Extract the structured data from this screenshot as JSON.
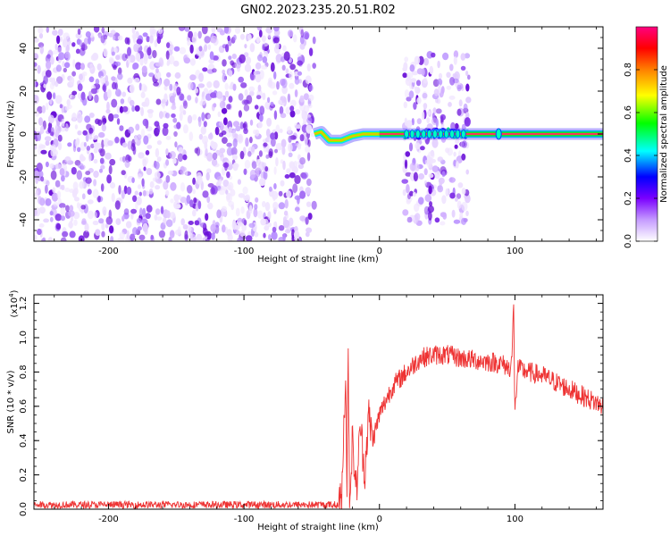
{
  "title": "GN02.2023.235.20.51.R02",
  "chart_data": [
    {
      "type": "heatmap",
      "xlabel": "Height of straight line (km)",
      "ylabel": "Frequency (Hz)",
      "xlim": [
        -255,
        165
      ],
      "ylim": [
        -50,
        50
      ],
      "xticks": [
        -200,
        -100,
        0,
        100
      ],
      "xtick_labels": [
        "-200",
        "-100",
        "0",
        "100"
      ],
      "yticks": [
        -40,
        -20,
        0,
        20,
        40
      ],
      "ytick_labels": [
        "-40",
        "-20",
        "0",
        "20",
        "40"
      ],
      "noise_regions": [
        {
          "x": [
            -255,
            -48
          ],
          "y": [
            -50,
            50
          ],
          "level": "medium"
        },
        {
          "x": [
            18,
            66
          ],
          "y": [
            -42,
            38
          ],
          "level": "medium"
        }
      ],
      "signal_track": [
        {
          "x": -48,
          "f": 0
        },
        {
          "x": -43,
          "f": 1
        },
        {
          "x": -37,
          "f": -3
        },
        {
          "x": -28,
          "f": -3
        },
        {
          "x": -20,
          "f": -1
        },
        {
          "x": -12,
          "f": 0
        },
        {
          "x": -5,
          "f": 0
        },
        {
          "x": 165,
          "f": 0
        }
      ],
      "strong_line": {
        "x": [
          0,
          165
        ],
        "f": 0
      },
      "colorbar": {
        "label": "Normalized spectral amplitude",
        "range": [
          0,
          1
        ],
        "ticks": [
          0.0,
          0.2,
          0.4,
          0.6,
          0.8
        ],
        "tick_labels": [
          "0.0",
          "0.2",
          "0.4",
          "0.6",
          "0.8"
        ],
        "colors": [
          "#ffffff",
          "#8a2be2",
          "#0000ff",
          "#00ffff",
          "#00ff00",
          "#ffff00",
          "#ff8000",
          "#ff0000",
          "#ff0080"
        ]
      }
    },
    {
      "type": "line",
      "xlabel": "Height of straight line (km)",
      "ylabel": "SNR (10 * v/v)",
      "multiplier": "(x10",
      "multiplier_exp": "4",
      "multiplier_close": ")",
      "xlim": [
        -255,
        165
      ],
      "ylim": [
        0,
        1.25
      ],
      "xticks": [
        -200,
        -100,
        0,
        100
      ],
      "xtick_labels": [
        "-200",
        "-100",
        "0",
        "100"
      ],
      "yticks": [
        0,
        0.2,
        0.4,
        0.6,
        0.8,
        1.0,
        1.2
      ],
      "ytick_labels": [
        "0.0",
        "0.2",
        "0.4",
        "0.6",
        "0.8",
        "1.0",
        "1.2"
      ],
      "series_color": "#ee3333",
      "envelope": [
        [
          -255,
          0.03
        ],
        [
          -30,
          0.03
        ],
        [
          -28,
          0.05
        ],
        [
          -27,
          0.3
        ],
        [
          -25,
          0.8
        ],
        [
          -24,
          0.15
        ],
        [
          -23,
          0.9
        ],
        [
          -22,
          0.05
        ],
        [
          -20,
          0.4
        ],
        [
          -17,
          0.1
        ],
        [
          -14,
          0.5
        ],
        [
          -11,
          0.2
        ],
        [
          -8,
          0.55
        ],
        [
          -5,
          0.4
        ],
        [
          0,
          0.55
        ],
        [
          5,
          0.64
        ],
        [
          10,
          0.72
        ],
        [
          20,
          0.8
        ],
        [
          30,
          0.88
        ],
        [
          40,
          0.9
        ],
        [
          50,
          0.9
        ],
        [
          60,
          0.88
        ],
        [
          70,
          0.87
        ],
        [
          80,
          0.86
        ],
        [
          90,
          0.85
        ],
        [
          96,
          0.82
        ],
        [
          98,
          0.9
        ],
        [
          99,
          1.22
        ],
        [
          100,
          0.55
        ],
        [
          102,
          0.82
        ],
        [
          110,
          0.8
        ],
        [
          120,
          0.78
        ],
        [
          130,
          0.74
        ],
        [
          140,
          0.7
        ],
        [
          150,
          0.66
        ],
        [
          160,
          0.62
        ],
        [
          165,
          0.6
        ]
      ],
      "noise_amplitude": 0.03
    }
  ]
}
